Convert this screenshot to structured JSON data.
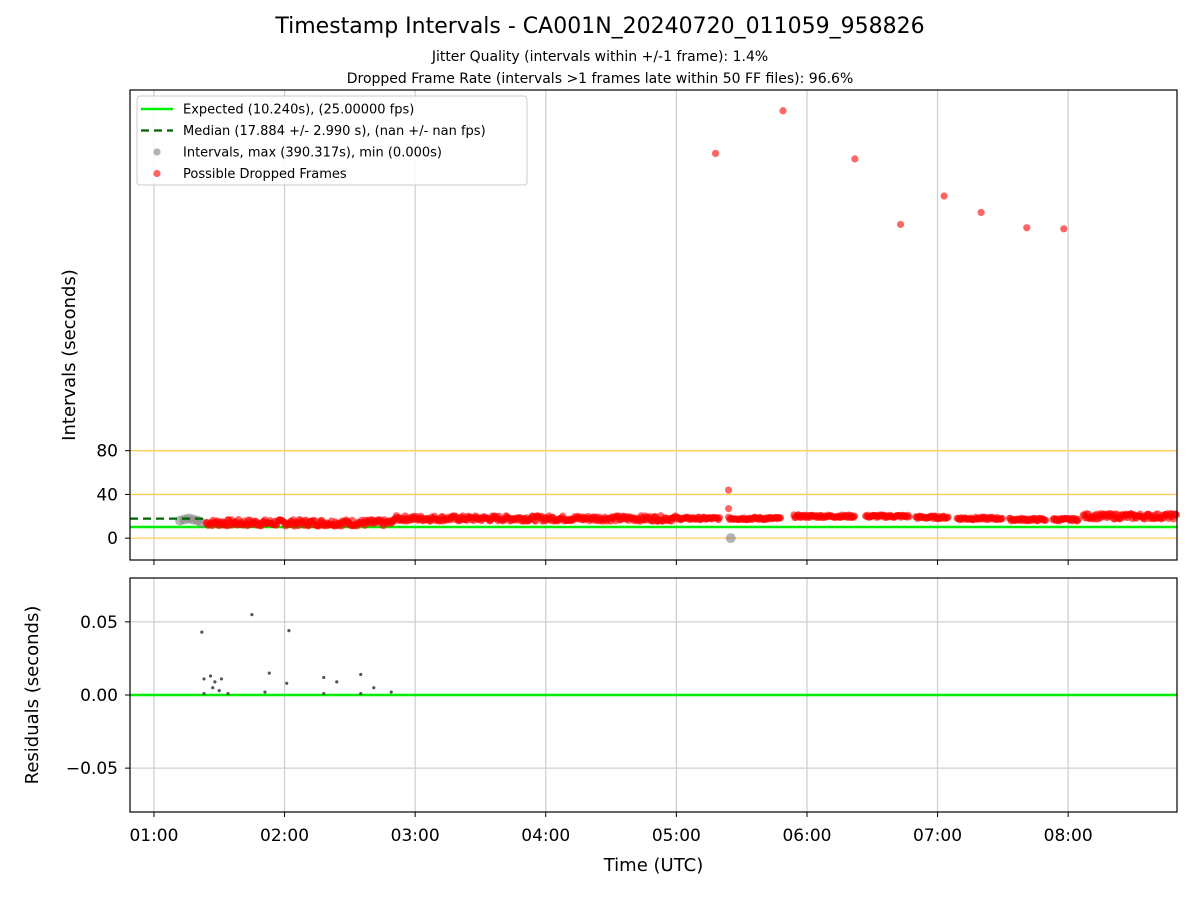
{
  "header": {
    "title": "Timestamp Intervals - CA001N_20240720_011059_958826",
    "jitter_text": "Jitter Quality (intervals within +/-1 frame): 1.4%",
    "dropped_text": "Dropped Frame Rate (intervals >1 frames late within 50 FF files): 96.6%"
  },
  "colors": {
    "expected": "#00ee00",
    "median": "#006400",
    "intervals": "#808080",
    "dropped": "#ff0000",
    "threshold": "#ffcc55",
    "grid": "#d0d0d0"
  },
  "chart_data": [
    {
      "type": "scatter",
      "xlabel": "Time (UTC)",
      "ylabel": "Intervals (seconds)",
      "x_ticks": [
        "01:00",
        "02:00",
        "03:00",
        "04:00",
        "05:00",
        "06:00",
        "07:00",
        "08:00"
      ],
      "y_ticks": [
        0,
        40,
        80
      ],
      "xlim": [
        "00:49",
        "08:50"
      ],
      "ylim": [
        -20,
        410
      ],
      "grid": true,
      "threshold_lines": [
        0,
        40,
        80
      ],
      "expected_line": 10.24,
      "median_line": 17.884,
      "legend_position": "top-left",
      "legend": [
        "Expected (10.240s), (25.00000 fps)",
        "Median (17.884 +/- 2.990 s), (nan +/- nan fps)",
        "Intervals, max (390.317s), min (0.000s)",
        "Possible Dropped Frames"
      ],
      "series": [
        {
          "name": "Intervals, max (390.317s), min (0.000s)",
          "points": [
            [
              "01:12",
              16
            ],
            [
              "01:14",
              17
            ],
            [
              "01:16",
              18
            ],
            [
              "01:18",
              17
            ],
            [
              "01:20",
              16
            ],
            [
              "01:22",
              14
            ],
            [
              "05:25",
              0
            ]
          ]
        },
        {
          "name": "Possible Dropped Frames",
          "points": [
            [
              "05:18",
              352
            ],
            [
              "05:24",
              44
            ],
            [
              "05:24",
              27
            ],
            [
              "05:49",
              391
            ],
            [
              "06:22",
              347
            ],
            [
              "06:43",
              287
            ],
            [
              "07:03",
              313
            ],
            [
              "07:20",
              298
            ],
            [
              "07:41",
              284
            ],
            [
              "07:58",
              283
            ]
          ],
          "dense_runs": [
            {
              "start": "01:24",
              "end": "02:50",
              "center": 14,
              "spread": 3
            },
            {
              "start": "02:50",
              "end": "05:00",
              "center": 18,
              "spread": 2.5
            },
            {
              "start": "05:00",
              "end": "05:20",
              "center": 18,
              "spread": 1.2
            },
            {
              "start": "05:24",
              "end": "05:48",
              "center": 18,
              "spread": 1.2
            },
            {
              "start": "05:54",
              "end": "06:22",
              "center": 20,
              "spread": 1.2
            },
            {
              "start": "06:27",
              "end": "06:47",
              "center": 20,
              "spread": 1.2
            },
            {
              "start": "06:50",
              "end": "07:05",
              "center": 19,
              "spread": 1.2
            },
            {
              "start": "07:09",
              "end": "07:30",
              "center": 18,
              "spread": 1.2
            },
            {
              "start": "07:33",
              "end": "07:50",
              "center": 17,
              "spread": 1.2
            },
            {
              "start": "07:53",
              "end": "08:05",
              "center": 17,
              "spread": 1.2
            },
            {
              "start": "08:07",
              "end": "08:50",
              "center": 20,
              "spread": 2.5
            }
          ]
        }
      ]
    },
    {
      "type": "scatter",
      "xlabel": "Time (UTC)",
      "ylabel": "Residuals (seconds)",
      "x_ticks": [
        "01:00",
        "02:00",
        "03:00",
        "04:00",
        "05:00",
        "06:00",
        "07:00",
        "08:00"
      ],
      "y_ticks": [
        "−0.05",
        "0.00",
        "0.05"
      ],
      "y_tick_values": [
        -0.05,
        0,
        0.05
      ],
      "xlim": [
        "00:49",
        "08:50"
      ],
      "ylim": [
        -0.08,
        0.08
      ],
      "grid": true,
      "zero_line": 0,
      "series": [
        {
          "name": "",
          "points": [
            [
              "01:22",
              0.043
            ],
            [
              "01:23",
              0.011
            ],
            [
              "01:23",
              0.001
            ],
            [
              "01:26",
              0.013
            ],
            [
              "01:27",
              0.005
            ],
            [
              "01:28",
              0.009
            ],
            [
              "01:30",
              0.003
            ],
            [
              "01:31",
              0.011
            ],
            [
              "01:34",
              0.001
            ],
            [
              "01:45",
              0.055
            ],
            [
              "01:51",
              0.002
            ],
            [
              "01:53",
              0.015
            ],
            [
              "02:01",
              0.008
            ],
            [
              "02:02",
              0.044
            ],
            [
              "02:18",
              0.012
            ],
            [
              "02:18",
              0.001
            ],
            [
              "02:24",
              0.009
            ],
            [
              "02:35",
              0.014
            ],
            [
              "02:35",
              0.001
            ],
            [
              "02:41",
              0.005
            ],
            [
              "02:49",
              0.002
            ]
          ]
        }
      ]
    }
  ]
}
